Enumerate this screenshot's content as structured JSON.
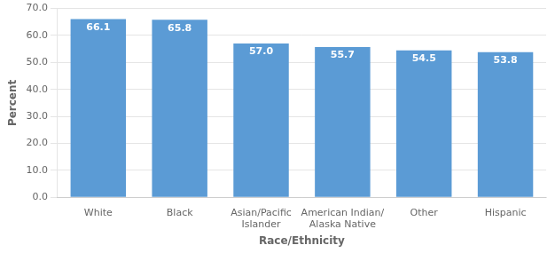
{
  "chart_data": {
    "type": "bar",
    "categories": [
      "White",
      "Black",
      "Asian/Pacific\nIslander",
      "American Indian/\nAlaska Native",
      "Other",
      "Hispanic"
    ],
    "values": [
      66.1,
      65.8,
      57.0,
      55.7,
      54.5,
      53.8
    ],
    "value_labels": [
      "66.1",
      "65.8",
      "57.0",
      "55.7",
      "54.5",
      "53.8"
    ],
    "data_labels": true,
    "color": "#5b9bd5",
    "xlabel": "Race/Ethnicity",
    "ylabel": "Percent",
    "ylim": [
      0,
      70
    ],
    "yticks": [
      {
        "value": 0,
        "label": "0.0"
      },
      {
        "value": 10,
        "label": "10.0"
      },
      {
        "value": 20,
        "label": "20.0"
      },
      {
        "value": 30,
        "label": "30.0"
      },
      {
        "value": 40,
        "label": "40.0"
      },
      {
        "value": 50,
        "label": "50.0"
      },
      {
        "value": 60,
        "label": "60.0"
      },
      {
        "value": 70,
        "label": "70.0"
      }
    ],
    "grid": true
  }
}
